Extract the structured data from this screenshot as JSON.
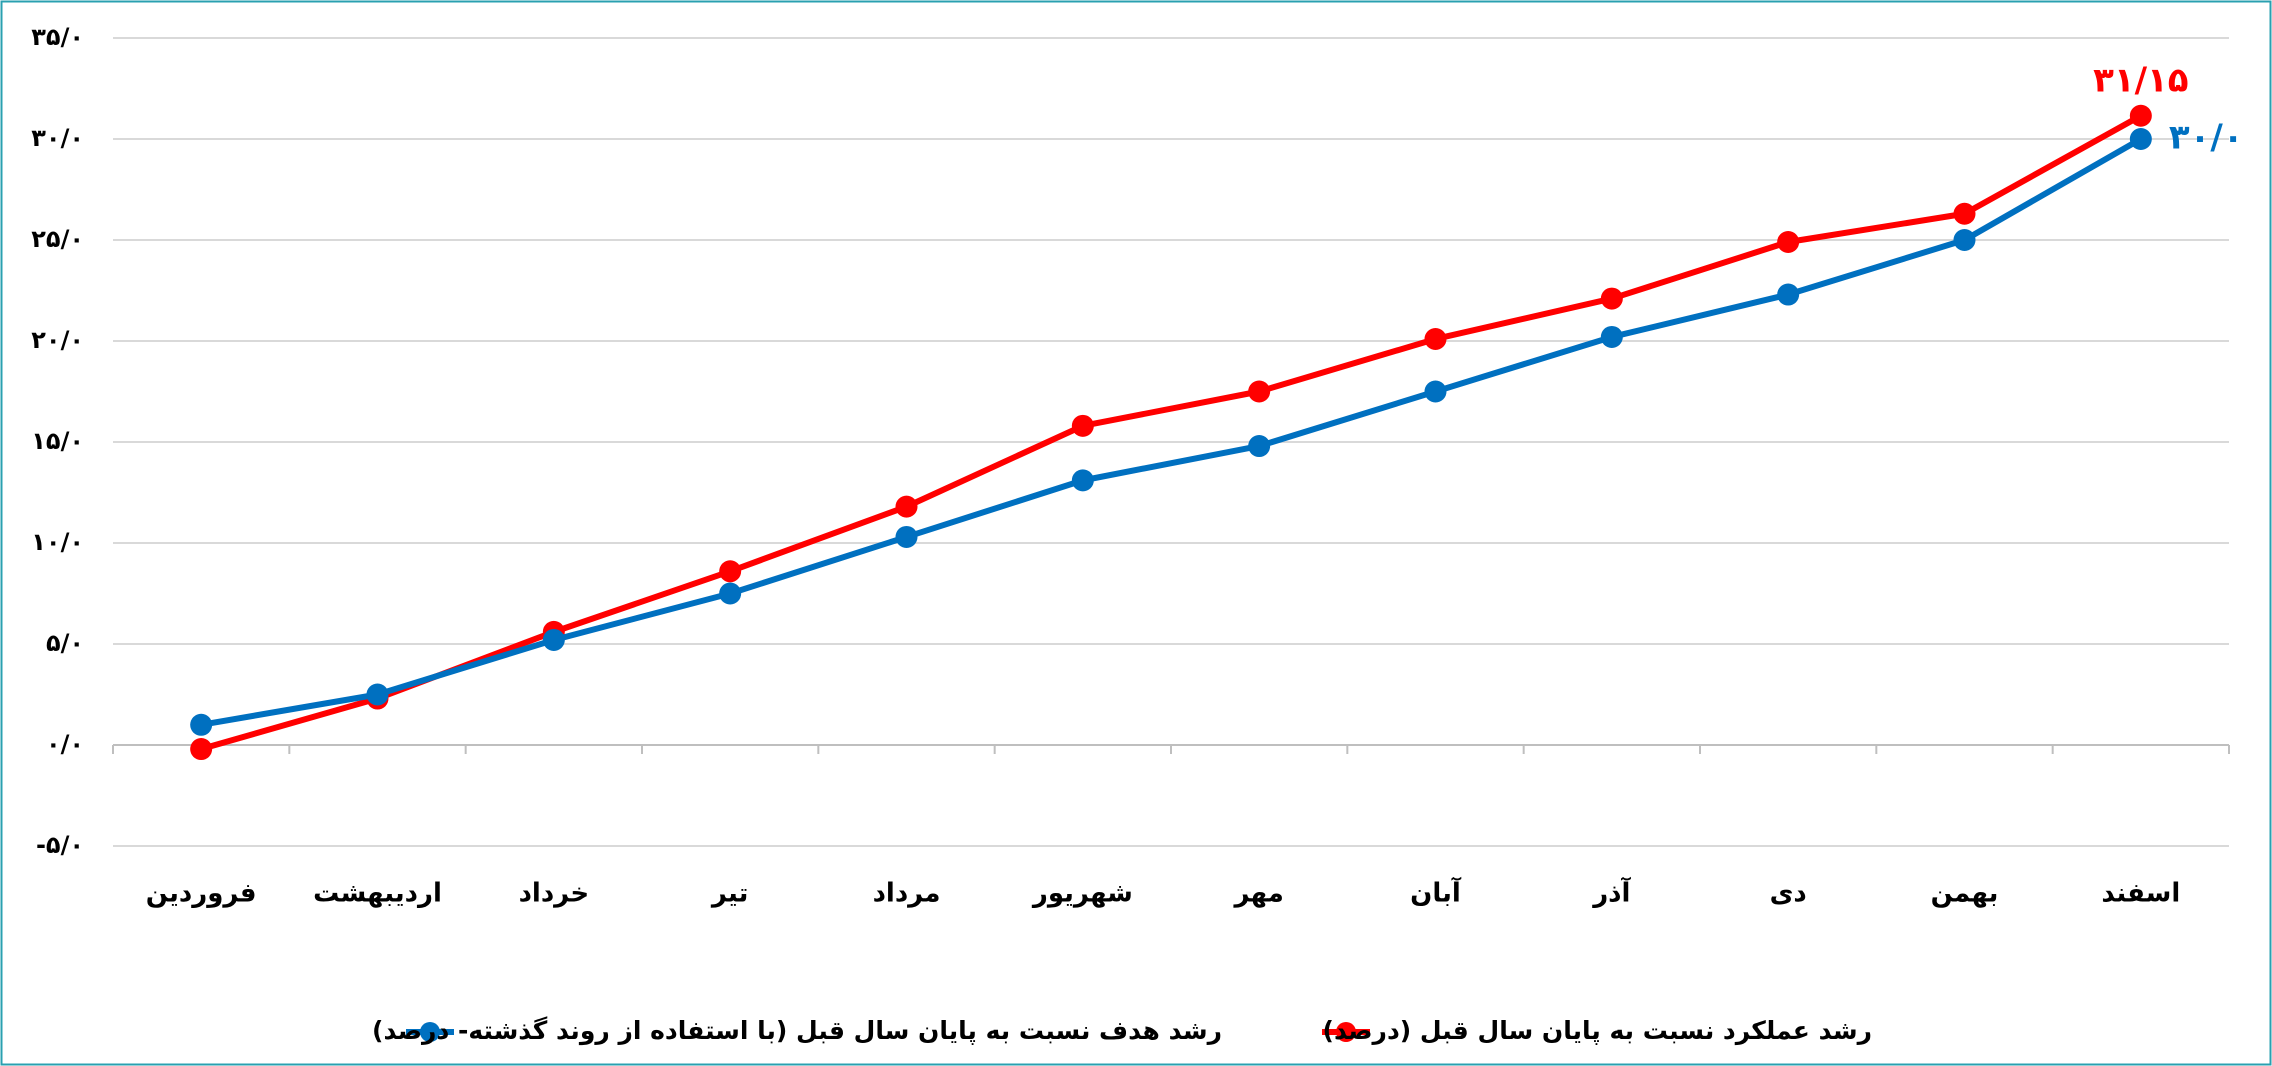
{
  "chart_data": {
    "type": "line",
    "categories": [
      "فروردین",
      "اردیبهشت",
      "خرداد",
      "تیر",
      "مرداد",
      "شهریور",
      "مهر",
      "آبان",
      "آذر",
      "دی",
      "بهمن",
      "اسفند"
    ],
    "series": [
      {
        "name": "رشد عملکرد نسبت به پایان سال قبل (درصد)",
        "color": "#ff0000",
        "values": [
          -0.2,
          2.3,
          5.6,
          8.6,
          11.8,
          15.8,
          17.5,
          20.1,
          22.1,
          24.9,
          26.3,
          31.15
        ],
        "value_labels": [
          null,
          null,
          null,
          null,
          null,
          null,
          null,
          null,
          null,
          null,
          null,
          "۳۱/۱۵"
        ]
      },
      {
        "name": "رشد هدف نسبت به پایان سال قبل (با استفاده از روند گذشته- درصد)",
        "color": "#0070c0",
        "values": [
          1.0,
          2.5,
          5.2,
          7.5,
          10.3,
          13.1,
          14.8,
          17.5,
          20.2,
          22.3,
          25.0,
          30.0
        ],
        "value_labels": [
          null,
          null,
          null,
          null,
          null,
          null,
          null,
          null,
          null,
          null,
          null,
          "۳۰/۰"
        ]
      }
    ],
    "ylim": [
      -5,
      35
    ],
    "yticks": [
      {
        "value": -5,
        "label": "-۵/۰"
      },
      {
        "value": 0,
        "label": "۰/۰"
      },
      {
        "value": 5,
        "label": "۵/۰"
      },
      {
        "value": 10,
        "label": "۱۰/۰"
      },
      {
        "value": 15,
        "label": "۱۵/۰"
      },
      {
        "value": 20,
        "label": "۲۰/۰"
      },
      {
        "value": 25,
        "label": "۲۵/۰"
      },
      {
        "value": 30,
        "label": "۳۰/۰"
      },
      {
        "value": 35,
        "label": "۳۵/۰"
      }
    ],
    "grid": true,
    "legend": "bottom"
  }
}
